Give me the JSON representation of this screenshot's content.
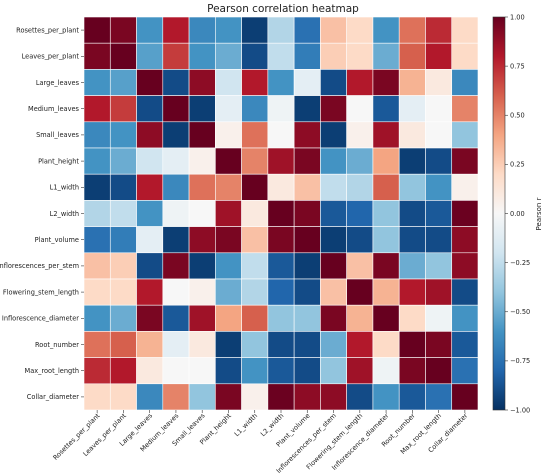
{
  "chart_data": {
    "type": "heatmap",
    "title": "Pearson correlation heatmap",
    "colorbar_label": "Pearson r",
    "colorbar_ticks": [
      "1.00",
      "0.75",
      "0.50",
      "0.25",
      "0.00",
      "−0.25",
      "−0.50",
      "−0.75",
      "−1.00"
    ],
    "vmin": -1,
    "vmax": 1,
    "colormap": [
      "#053061",
      "#2166ac",
      "#4393c3",
      "#92c5de",
      "#d1e5f0",
      "#f7f7f7",
      "#fddbc7",
      "#f4a582",
      "#d6604d",
      "#b2182b",
      "#67001f"
    ],
    "labels": [
      "Rosettes_per_plant",
      "Leaves_per_plant",
      "Large_leaves",
      "Medium_leaves",
      "Small_leaves",
      "Plant_height",
      "L1_width",
      "L2_width",
      "Plant_volume",
      "Inflorescences_per_stem",
      "Flowering_stem_length",
      "Inflorescence_diameter",
      "Root_number",
      "Max_root_length",
      "Collar_diameter"
    ],
    "matrix": [
      [
        1.0,
        0.95,
        -0.6,
        0.8,
        -0.65,
        -0.6,
        -0.95,
        -0.3,
        -0.75,
        0.3,
        0.2,
        -0.6,
        0.55,
        0.75,
        0.2
      ],
      [
        0.95,
        1.0,
        -0.55,
        0.7,
        -0.6,
        -0.5,
        -0.9,
        -0.25,
        -0.7,
        0.25,
        0.2,
        -0.5,
        0.6,
        0.8,
        0.2
      ],
      [
        -0.6,
        -0.55,
        1.0,
        -0.9,
        0.9,
        -0.2,
        0.8,
        -0.6,
        -0.1,
        -0.9,
        0.8,
        0.95,
        0.35,
        0.1,
        -0.65
      ],
      [
        0.8,
        0.7,
        -0.9,
        1.0,
        -0.95,
        -0.1,
        -0.65,
        -0.05,
        -0.95,
        0.95,
        0.0,
        -0.85,
        -0.1,
        0.0,
        0.5
      ],
      [
        -0.65,
        -0.6,
        0.9,
        -0.95,
        1.0,
        0.05,
        0.55,
        0.0,
        0.9,
        -0.95,
        0.05,
        0.85,
        0.1,
        0.0,
        -0.4
      ],
      [
        -0.6,
        -0.5,
        -0.2,
        -0.1,
        0.05,
        1.0,
        0.5,
        0.85,
        0.95,
        -0.6,
        -0.5,
        0.4,
        -0.95,
        -0.9,
        0.95
      ],
      [
        -0.95,
        -0.9,
        0.8,
        -0.65,
        0.55,
        0.5,
        1.0,
        0.1,
        0.3,
        -0.25,
        -0.3,
        0.6,
        -0.4,
        -0.6,
        0.05
      ],
      [
        -0.3,
        -0.25,
        -0.6,
        -0.05,
        0.0,
        0.85,
        0.1,
        1.0,
        0.95,
        -0.85,
        -0.8,
        -0.4,
        -0.9,
        -0.85,
        0.99
      ],
      [
        -0.75,
        -0.7,
        -0.1,
        -0.95,
        0.9,
        0.95,
        0.3,
        0.95,
        1.0,
        -0.95,
        -0.9,
        -0.4,
        -0.9,
        -0.9,
        0.9
      ],
      [
        0.3,
        0.25,
        -0.9,
        0.95,
        -0.95,
        -0.6,
        -0.25,
        -0.85,
        -0.95,
        1.0,
        0.3,
        0.95,
        -0.5,
        -0.4,
        0.9
      ],
      [
        0.2,
        0.2,
        0.8,
        0.0,
        0.05,
        -0.5,
        -0.3,
        -0.8,
        -0.9,
        0.3,
        1.0,
        0.35,
        0.8,
        0.85,
        -0.9
      ],
      [
        -0.6,
        -0.5,
        0.95,
        -0.85,
        0.85,
        0.4,
        0.6,
        -0.4,
        -0.4,
        0.95,
        0.35,
        1.0,
        0.2,
        -0.05,
        -0.6
      ],
      [
        0.55,
        0.6,
        0.35,
        -0.1,
        0.1,
        -0.95,
        -0.4,
        -0.9,
        -0.9,
        -0.5,
        0.8,
        0.2,
        1.0,
        0.95,
        -0.85
      ],
      [
        0.75,
        0.8,
        0.1,
        0.0,
        0.0,
        -0.9,
        -0.6,
        -0.85,
        -0.9,
        -0.4,
        0.85,
        -0.05,
        0.95,
        1.0,
        -0.75
      ],
      [
        0.2,
        0.2,
        -0.65,
        0.5,
        -0.4,
        0.95,
        0.05,
        0.99,
        0.9,
        0.9,
        -0.9,
        -0.6,
        -0.85,
        -0.75,
        1.0
      ]
    ]
  }
}
